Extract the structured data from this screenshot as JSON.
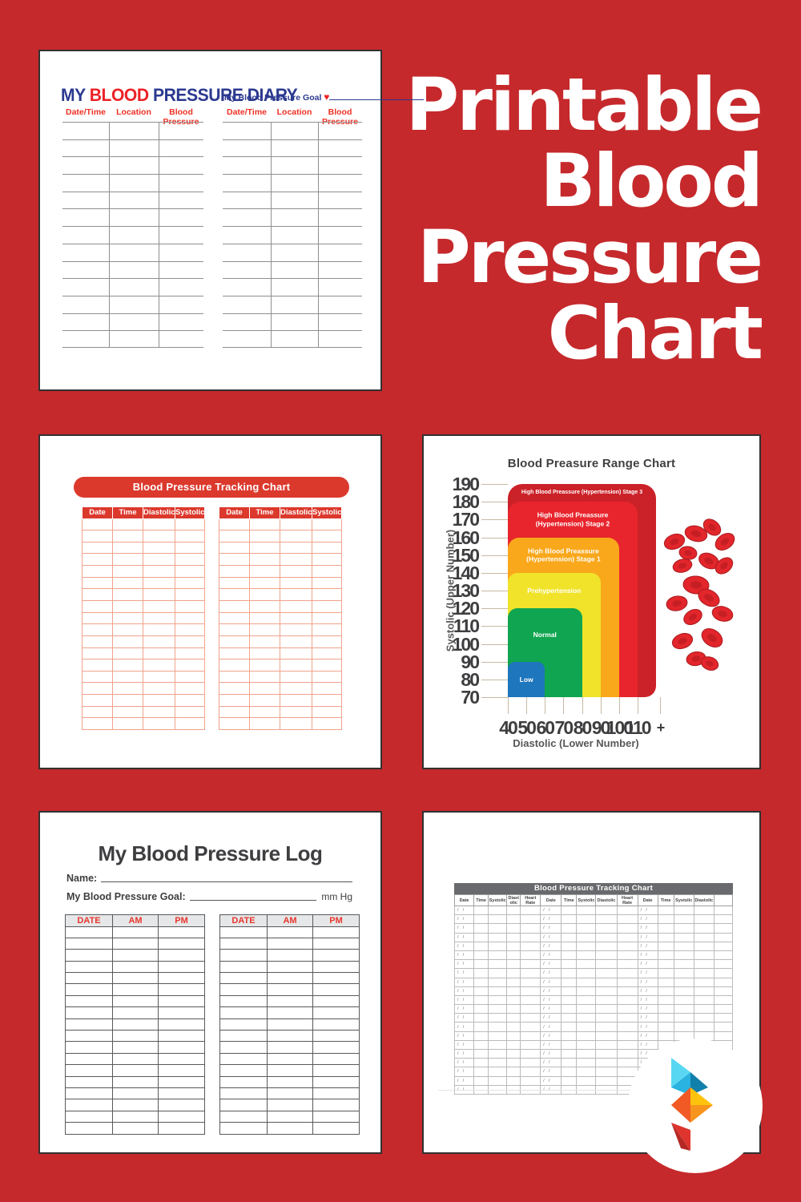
{
  "poster": {
    "title_lines": [
      "Printable",
      "Blood",
      "Pressure",
      "Chart"
    ],
    "background_color": "#C5292C"
  },
  "diary": {
    "title_my": "MY",
    "title_blood": "BLOOD",
    "title_rest": "PRESSURE DIARY",
    "title_color": "#2B3990",
    "title_accent_color": "#EC2227",
    "goal_label": "My Blood Pressure Goal",
    "heart_icon": "♥",
    "columns": [
      "Date/Time",
      "Location",
      "Blood Pressure"
    ],
    "row_count": 13,
    "table_count": 2
  },
  "tracking": {
    "title": "Blood Pressure Tracking Chart",
    "header_color": "#DC392D",
    "grid_color": "#F0A38B",
    "columns": [
      "Date",
      "Time",
      "Diastolic",
      "Systolic"
    ],
    "row_count": 18,
    "table_count": 2
  },
  "range_chart": {
    "title": "Blood Preasure Range Chart",
    "y_axis_label": "Systolic (Upper Number)",
    "x_axis_label": "Diastolic (Lower Number)",
    "y_ticks": [
      "190",
      "180",
      "170",
      "160",
      "150",
      "140",
      "130",
      "120",
      "110",
      "100",
      "90",
      "80",
      "70"
    ],
    "x_ticks": [
      "40",
      "50",
      "60",
      "70",
      "80",
      "90",
      "100",
      "110",
      "+"
    ],
    "zones": [
      {
        "lines": [
          "High Blood Preassure (Hypertension) Stage 3"
        ],
        "color": "#CB2128",
        "systolic_top": 190,
        "diastolic_right": "+"
      },
      {
        "lines": [
          "High Blood Preassure",
          "(Hypertension) Stage 2"
        ],
        "color": "#E8252D",
        "systolic_top": 180,
        "diastolic_right": 110
      },
      {
        "lines": [
          "High Blood Preassure",
          "(Hypertension) Stage 1"
        ],
        "color": "#F9A71B",
        "systolic_top": 160,
        "diastolic_right": 100
      },
      {
        "lines": [
          "Prehypertension"
        ],
        "color": "#F0E32A",
        "systolic_top": 140,
        "diastolic_right": 90
      },
      {
        "lines": [
          "Normal"
        ],
        "color": "#10A550",
        "systolic_top": 120,
        "diastolic_right": 80
      },
      {
        "lines": [
          "Low"
        ],
        "color": "#1E76BC",
        "systolic_top": 90,
        "diastolic_right": 60
      }
    ]
  },
  "chart_data": {
    "type": "area",
    "title": "Blood Preasure Range Chart",
    "xlabel": "Diastolic (Lower Number)",
    "ylabel": "Systolic (Upper Number)",
    "xlim": [
      40,
      "110+"
    ],
    "ylim": [
      70,
      190
    ],
    "x_ticks": [
      40,
      50,
      60,
      70,
      80,
      90,
      100,
      110,
      "+"
    ],
    "y_ticks": [
      70,
      80,
      90,
      100,
      110,
      120,
      130,
      140,
      150,
      160,
      170,
      180,
      190
    ],
    "zones": [
      {
        "label": "High Blood Preassure (Hypertension) Stage 3",
        "systolic_range": [
          70,
          190
        ],
        "diastolic_range": [
          40,
          "110+"
        ],
        "color": "#CB2128"
      },
      {
        "label": "High Blood Preassure (Hypertension) Stage 2",
        "systolic_range": [
          70,
          180
        ],
        "diastolic_range": [
          40,
          110
        ],
        "color": "#E8252D"
      },
      {
        "label": "High Blood Preassure (Hypertension) Stage 1",
        "systolic_range": [
          70,
          160
        ],
        "diastolic_range": [
          40,
          100
        ],
        "color": "#F9A71B"
      },
      {
        "label": "Prehypertension",
        "systolic_range": [
          70,
          140
        ],
        "diastolic_range": [
          40,
          90
        ],
        "color": "#F0E32A"
      },
      {
        "label": "Normal",
        "systolic_range": [
          70,
          120
        ],
        "diastolic_range": [
          40,
          80
        ],
        "color": "#10A550"
      },
      {
        "label": "Low",
        "systolic_range": [
          70,
          90
        ],
        "diastolic_range": [
          40,
          60
        ],
        "color": "#1E76BC"
      }
    ]
  },
  "log": {
    "title": "My Blood Pressure Log",
    "name_label": "Name:",
    "goal_label": "My Blood Pressure Goal:",
    "goal_unit": "mm Hg",
    "columns": [
      "DATE",
      "AM",
      "PM"
    ],
    "row_count": 18,
    "table_count": 2
  },
  "tracking2": {
    "title": "Blood Pressure Tracking Chart",
    "columns": [
      "Date",
      "Time",
      "Systolic",
      "Diast olic",
      "Heart Rate",
      "Date",
      "Time",
      "Systolic",
      "Diastolic",
      "Heart Rate",
      "Date",
      "Time",
      "Systolic",
      "Diastolic",
      ""
    ],
    "date_placeholder": "/ /",
    "date_column_indexes": [
      0,
      5,
      10
    ],
    "row_count": 21
  },
  "logo": {
    "name": "printablee-logo"
  }
}
